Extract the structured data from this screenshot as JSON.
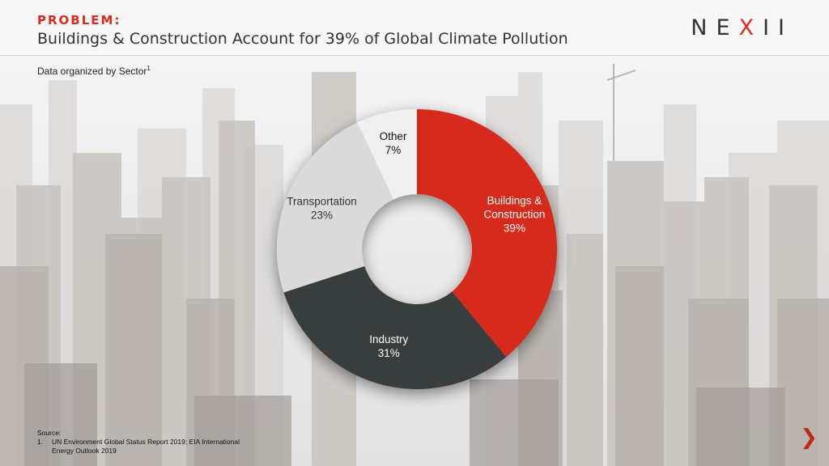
{
  "header": {
    "kicker": "PROBLEM:",
    "title": "Buildings & Construction Account for 39% of Global Climate Pollution",
    "logo_parts": [
      "NE",
      "X",
      "II"
    ]
  },
  "subtitle": {
    "text": "Data organized by Sector",
    "footnote_mark": "1"
  },
  "chart_data": {
    "type": "pie",
    "donut": true,
    "slices": [
      {
        "label": "Buildings & Construction",
        "value": 39,
        "display": "39%",
        "color": "#d62b1f",
        "text_color": "#ffffff"
      },
      {
        "label": "Industry",
        "value": 31,
        "display": "31%",
        "color": "#373d3c",
        "text_color": "#ffffff"
      },
      {
        "label": "Transportation",
        "value": 23,
        "display": "23%",
        "color": "#dadada",
        "text_color": "#333333"
      },
      {
        "label": "Other",
        "value": 7,
        "display": "7%",
        "color": "#f0f0f0",
        "text_color": "#111111"
      }
    ],
    "start": "12 o'clock",
    "direction": "clockwise"
  },
  "source": {
    "heading": "Source:",
    "items": [
      {
        "num": "1.",
        "text": "UN Environment Global Status Report 2019; EIA International Energy Outlook 2019"
      }
    ]
  },
  "nav": {
    "next_glyph": "❯"
  },
  "colors": {
    "accent": "#d62b1f",
    "dark": "#373d3c"
  }
}
